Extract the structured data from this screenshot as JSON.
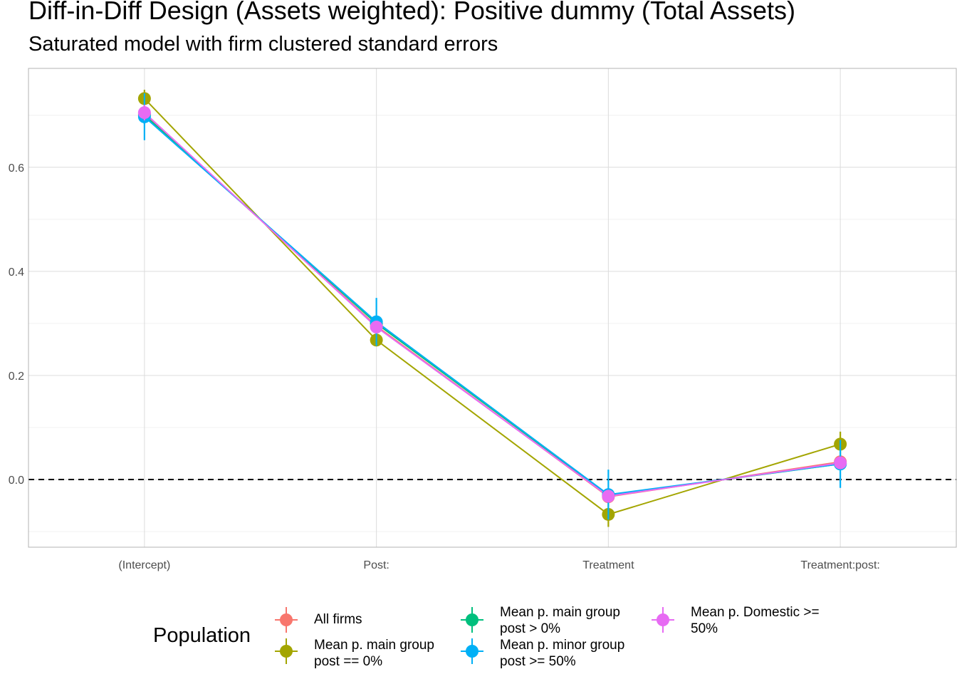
{
  "chart_data": {
    "type": "scatter",
    "title": "Diff-in-Diff Design (Assets weighted): Positive dummy (Total Assets)",
    "subtitle": "Saturated model with firm clustered standard errors",
    "xlabel": "",
    "ylabel": "",
    "categories": [
      "(Intercept)",
      "Post:",
      "Treatment",
      "Treatment:post:"
    ],
    "yticks": [
      "0.0",
      "0.2",
      "0.4",
      "0.6"
    ],
    "ylim": [
      -0.13,
      0.79
    ],
    "reference_line": 0,
    "grid": true,
    "legend": {
      "title": "Population",
      "position": "bottom"
    },
    "series": [
      {
        "name": "All firms",
        "color": "#F8766D",
        "values": [
          0.703,
          0.295,
          -0.033,
          0.034
        ],
        "ci": [
          [
            0.685,
            0.721
          ],
          [
            0.283,
            0.307
          ],
          [
            -0.043,
            -0.023
          ],
          [
            0.026,
            0.042
          ]
        ]
      },
      {
        "name": "Mean p. main group post == 0%",
        "color": "#A3A500",
        "values": [
          0.732,
          0.268,
          -0.067,
          0.068
        ],
        "ci": [
          [
            0.715,
            0.749
          ],
          [
            0.256,
            0.28
          ],
          [
            -0.091,
            -0.043
          ],
          [
            0.044,
            0.092
          ]
        ]
      },
      {
        "name": "Mean p. main group post > 0%",
        "color": "#00BF7D",
        "values": [
          0.7,
          0.3,
          -0.03,
          0.03
        ],
        "ci": [
          [
            0.683,
            0.717
          ],
          [
            0.288,
            0.312
          ],
          [
            -0.04,
            -0.02
          ],
          [
            0.022,
            0.038
          ]
        ]
      },
      {
        "name": "Mean p. minor group post >= 50%",
        "color": "#00B0F6",
        "values": [
          0.697,
          0.303,
          -0.029,
          0.03
        ],
        "ci": [
          [
            0.652,
            0.742
          ],
          [
            0.257,
            0.349
          ],
          [
            -0.077,
            0.019
          ],
          [
            -0.016,
            0.076
          ]
        ]
      },
      {
        "name": "Mean p. Domestic >= 50%",
        "color": "#E76BF3",
        "values": [
          0.705,
          0.293,
          -0.032,
          0.032
        ],
        "ci": [
          [
            0.69,
            0.72
          ],
          [
            0.283,
            0.303
          ],
          [
            -0.04,
            -0.024
          ],
          [
            0.025,
            0.039
          ]
        ]
      }
    ]
  },
  "legend_items": [
    {
      "line1": "All firms",
      "line2": ""
    },
    {
      "line1": "Mean p. main group",
      "line2": "post == 0%"
    },
    {
      "line1": "Mean p. main group",
      "line2": "post > 0%"
    },
    {
      "line1": "Mean p. minor group",
      "line2": "post >= 50%"
    },
    {
      "line1": "Mean p. Domestic >=",
      "line2": "50%"
    }
  ]
}
